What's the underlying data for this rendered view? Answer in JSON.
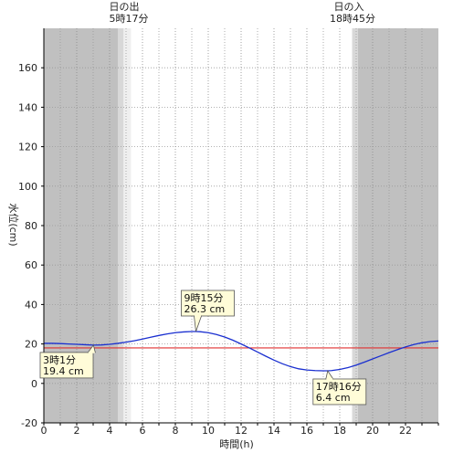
{
  "chart_data": {
    "type": "line",
    "xlabel": "時間(h)",
    "ylabel": "水位(cm)",
    "xlim": [
      0,
      24
    ],
    "ylim": [
      -20,
      180
    ],
    "x_ticks": [
      0,
      2,
      4,
      6,
      8,
      10,
      12,
      14,
      16,
      18,
      20,
      22
    ],
    "y_ticks": [
      -20,
      0,
      20,
      40,
      60,
      80,
      100,
      120,
      140,
      160
    ],
    "grid": true,
    "reference_line": {
      "y": 18,
      "color": "#e03030"
    },
    "series": [
      {
        "color": "#1a2fd0",
        "x": [
          0,
          0.5,
          1,
          1.5,
          2,
          2.5,
          3.017,
          3.5,
          4,
          4.5,
          5,
          5.5,
          6,
          6.5,
          7,
          7.5,
          8,
          8.5,
          9,
          9.25,
          9.5,
          10,
          10.5,
          11,
          11.5,
          12,
          12.5,
          13,
          13.5,
          14,
          14.5,
          15,
          15.5,
          16,
          16.5,
          17,
          17.267,
          17.5,
          18,
          18.5,
          19,
          19.5,
          20,
          20.5,
          21,
          21.5,
          22,
          22.5,
          23,
          23.5,
          24
        ],
        "y": [
          20.3,
          20.3,
          20.2,
          20.0,
          19.8,
          19.6,
          19.4,
          19.5,
          19.8,
          20.3,
          20.9,
          21.6,
          22.5,
          23.4,
          24.3,
          25.1,
          25.7,
          26.1,
          26.3,
          26.3,
          26.2,
          25.7,
          24.8,
          23.5,
          21.9,
          20.0,
          18.0,
          15.9,
          13.8,
          11.8,
          10.0,
          8.5,
          7.4,
          6.8,
          6.5,
          6.4,
          6.4,
          6.5,
          7.1,
          8.0,
          9.3,
          10.8,
          12.4,
          14.0,
          15.6,
          17.1,
          18.5,
          19.7,
          20.6,
          21.2,
          21.5
        ]
      }
    ],
    "annotations": [
      {
        "time": "3時1分",
        "value": "19.4 cm",
        "x": 3.017,
        "y": 19.4
      },
      {
        "time": "9時15分",
        "value": "26.3 cm",
        "x": 9.25,
        "y": 26.3
      },
      {
        "time": "17時16分",
        "value": "6.4 cm",
        "x": 17.267,
        "y": 6.4
      }
    ],
    "sunrise": {
      "label": "日の出",
      "time": "5時17分",
      "x": 5.283
    },
    "sunset": {
      "label": "日の入",
      "time": "18時45分",
      "x": 18.75
    },
    "shading": {
      "night_color": "#c0c0c0",
      "twilight_color": "#d8d8d8",
      "dawn_twilight": [
        4.5,
        4.85
      ],
      "dusk_twilight": [
        18.75,
        19.1
      ],
      "morning_civil_light": [
        4.85,
        5.3
      ],
      "evening_civil_light": [
        18.75,
        19.1
      ]
    }
  }
}
